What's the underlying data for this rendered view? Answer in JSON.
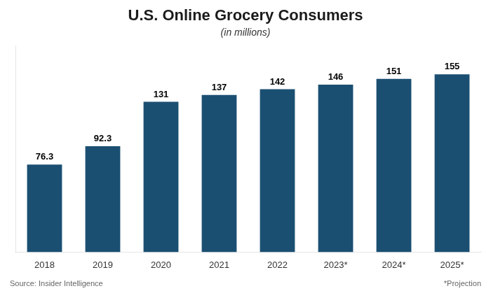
{
  "chart_data": {
    "type": "bar",
    "title": "U.S. Online Grocery Consumers",
    "subtitle": "(in millions)",
    "categories": [
      "2018",
      "2019",
      "2020",
      "2021",
      "2022",
      "2023*",
      "2024*",
      "2025*"
    ],
    "values": [
      76.3,
      92.3,
      131,
      137,
      142,
      146,
      151,
      155
    ],
    "color": "#1b4f72",
    "ylim": [
      0,
      180
    ],
    "grid": false,
    "legend": false,
    "data_labels": true,
    "tick_labels": "x",
    "annotations": [
      "Source: Insider Intelligence",
      "*Projection"
    ]
  }
}
